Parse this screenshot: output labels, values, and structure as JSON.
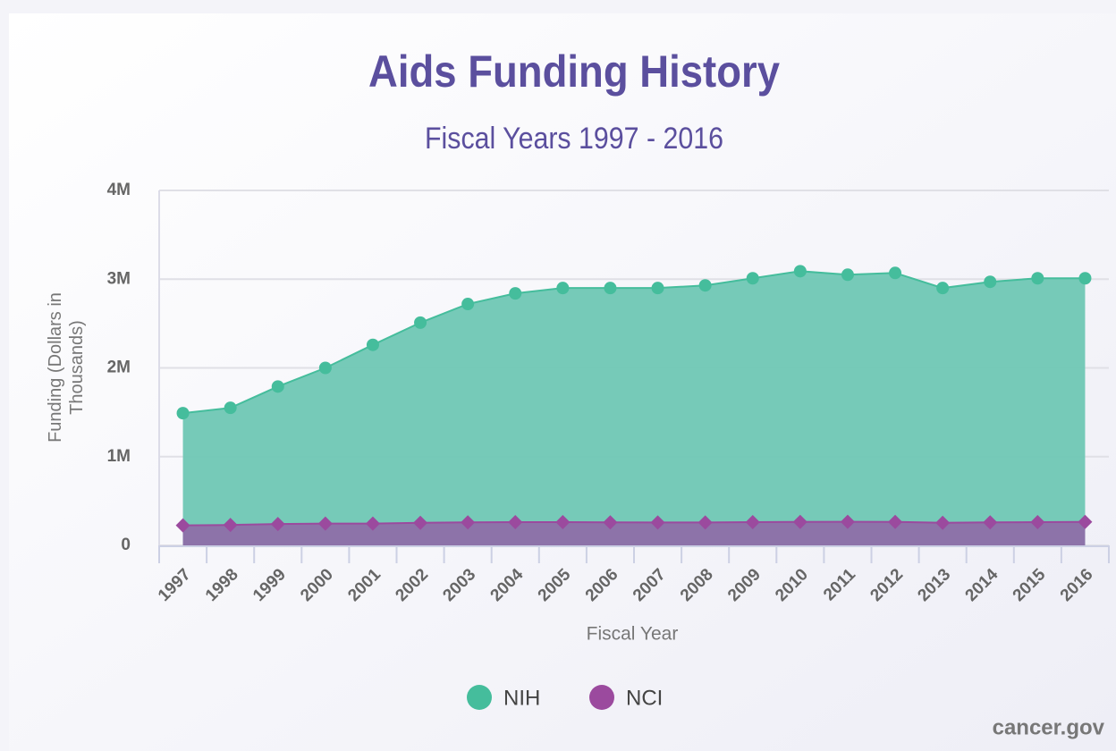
{
  "chart_data": {
    "type": "area",
    "title": "Aids Funding History",
    "subtitle": "Fiscal Years 1997 - 2016",
    "x_label": "Fiscal Year",
    "y_label": "Funding (Dollars in Thousands)",
    "credits": "cancer.gov",
    "categories": [
      "1997",
      "1998",
      "1999",
      "2000",
      "2001",
      "2002",
      "2003",
      "2004",
      "2005",
      "2006",
      "2007",
      "2008",
      "2009",
      "2010",
      "2011",
      "2012",
      "2013",
      "2014",
      "2015",
      "2016"
    ],
    "series": [
      {
        "name": "NIH",
        "color": "#45bd9c",
        "area_color": "#6fc7b4",
        "marker": "circle",
        "values": [
          1490000,
          1550000,
          1790000,
          2000000,
          2260000,
          2510000,
          2720000,
          2840000,
          2900000,
          2900000,
          2900000,
          2930000,
          3010000,
          3090000,
          3050000,
          3070000,
          2900000,
          2970000,
          3010000,
          3010000
        ]
      },
      {
        "name": "NCI",
        "color": "#9b4a9e",
        "area_color": "#8e6ea8",
        "marker": "diamond",
        "values": [
          226000,
          230000,
          240000,
          246000,
          245000,
          254000,
          259000,
          262000,
          262000,
          260000,
          258000,
          258000,
          262000,
          265000,
          266000,
          265000,
          255000,
          259000,
          262000,
          265000
        ]
      }
    ],
    "ylim": [
      0,
      4000000
    ],
    "yticks": [
      0,
      {
        "value": 1000000,
        "label": "1M"
      },
      {
        "value": 2000000,
        "label": "2M"
      },
      {
        "value": 3000000,
        "label": "3M"
      },
      {
        "value": 4000000,
        "label": "4M"
      }
    ],
    "grid": true,
    "legend": "bottom"
  }
}
